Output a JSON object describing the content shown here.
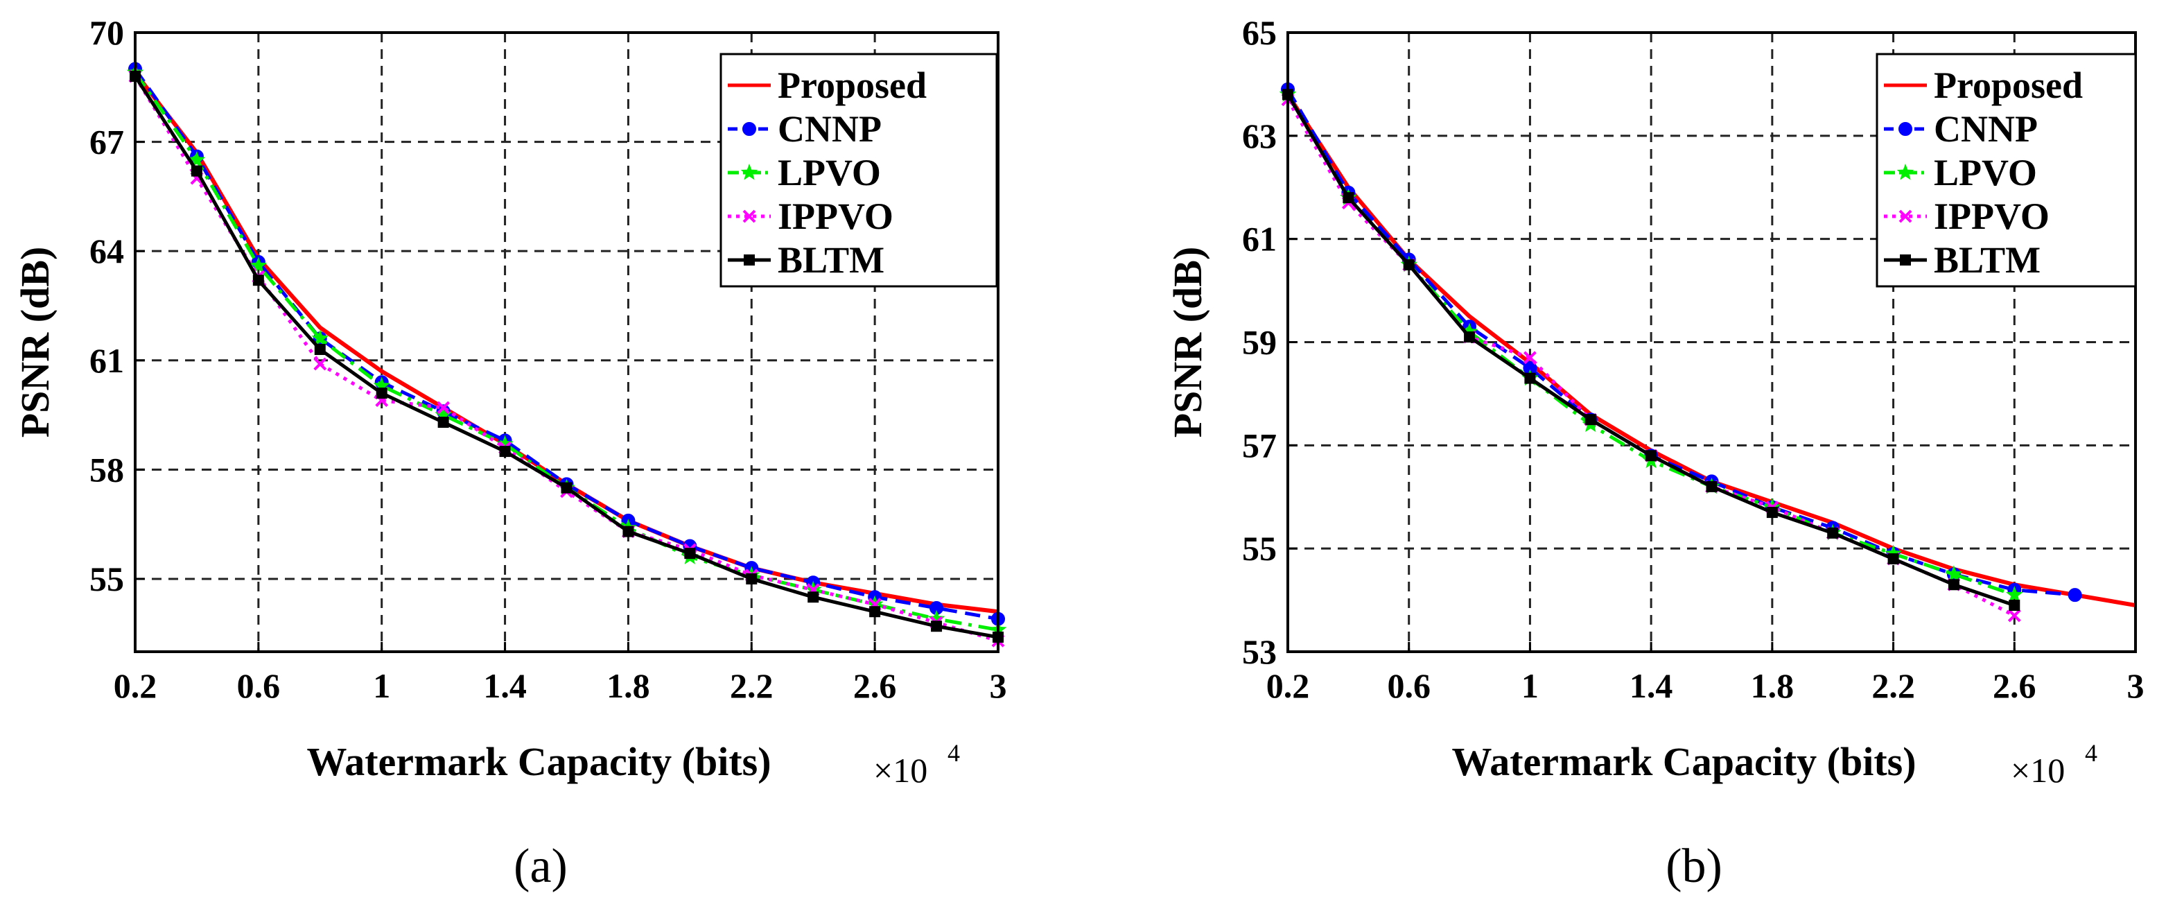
{
  "chart_data": [
    {
      "type": "line",
      "caption": "(a)",
      "xlabel": "Watermark Capacity (bits)",
      "x_multiplier": "×10",
      "x_multiplier_exp": "4",
      "ylabel": "PSNR (dB)",
      "xlim": [
        0.2,
        3.0
      ],
      "ylim": [
        53.0,
        70.0
      ],
      "xticks": [
        "0.2",
        "0.6",
        "1",
        "1.4",
        "1.8",
        "2.2",
        "2.6",
        "3"
      ],
      "xtick_values": [
        0.2,
        0.6,
        1.0,
        1.4,
        1.8,
        2.2,
        2.6,
        3.0
      ],
      "yticks": [
        "55",
        "58",
        "61",
        "64",
        "67",
        "70"
      ],
      "ytick_values": [
        55,
        58,
        61,
        64,
        67,
        70
      ],
      "grid": true,
      "legend_position": "top-right",
      "series": [
        {
          "name": "Proposed",
          "color": "#ff0000",
          "dash": "solid",
          "marker": "none",
          "x": [
            0.2,
            0.4,
            0.6,
            0.8,
            1.0,
            1.2,
            1.4,
            1.6,
            1.8,
            2.0,
            2.2,
            2.4,
            2.6,
            2.8,
            3.0
          ],
          "y": [
            68.9,
            66.7,
            63.8,
            61.9,
            60.7,
            59.7,
            58.7,
            57.6,
            56.6,
            55.9,
            55.3,
            54.9,
            54.6,
            54.3,
            54.1
          ]
        },
        {
          "name": "CNNP",
          "color": "#0000ff",
          "dash": "dash",
          "marker": "circle",
          "x": [
            0.2,
            0.4,
            0.6,
            0.8,
            1.0,
            1.2,
            1.4,
            1.6,
            1.8,
            2.0,
            2.2,
            2.4,
            2.6,
            2.8,
            3.0
          ],
          "y": [
            69.0,
            66.6,
            63.7,
            61.6,
            60.4,
            59.6,
            58.8,
            57.6,
            56.6,
            55.9,
            55.3,
            54.9,
            54.5,
            54.2,
            53.9
          ]
        },
        {
          "name": "LPVO",
          "color": "#00ee00",
          "dash": "dashdot",
          "marker": "star",
          "x": [
            0.2,
            0.4,
            0.6,
            0.8,
            1.0,
            1.2,
            1.4,
            1.6,
            1.8,
            2.0,
            2.2,
            2.4,
            2.6,
            2.8,
            3.0
          ],
          "y": [
            68.9,
            66.5,
            63.6,
            61.6,
            60.3,
            59.5,
            58.7,
            57.5,
            56.4,
            55.6,
            55.1,
            54.7,
            54.3,
            53.9,
            53.6
          ]
        },
        {
          "name": "IPPVO",
          "color": "#ff00ff",
          "dash": "dot",
          "marker": "x",
          "x": [
            0.2,
            0.4,
            0.6,
            0.8,
            1.0,
            1.2,
            1.4,
            1.6,
            1.8,
            2.0,
            2.2,
            2.4,
            2.6,
            2.8,
            3.0
          ],
          "y": [
            68.8,
            66.0,
            63.3,
            60.9,
            59.9,
            59.7,
            58.6,
            57.4,
            56.3,
            55.8,
            55.1,
            54.7,
            54.3,
            53.8,
            53.3
          ]
        },
        {
          "name": "BLTM",
          "color": "#000000",
          "dash": "solid",
          "marker": "square",
          "x": [
            0.2,
            0.4,
            0.6,
            0.8,
            1.0,
            1.2,
            1.4,
            1.6,
            1.8,
            2.0,
            2.2,
            2.4,
            2.6,
            2.8,
            3.0
          ],
          "y": [
            68.8,
            66.2,
            63.2,
            61.3,
            60.1,
            59.3,
            58.5,
            57.5,
            56.3,
            55.7,
            55.0,
            54.5,
            54.1,
            53.7,
            53.4
          ]
        }
      ]
    },
    {
      "type": "line",
      "caption": "(b)",
      "xlabel": "Watermark Capacity (bits)",
      "x_multiplier": "×10",
      "x_multiplier_exp": "4",
      "ylabel": "PSNR (dB)",
      "xlim": [
        0.2,
        3.0
      ],
      "ylim": [
        53.0,
        65.0
      ],
      "xticks": [
        "0.2",
        "0.6",
        "1",
        "1.4",
        "1.8",
        "2.2",
        "2.6",
        "3"
      ],
      "xtick_values": [
        0.2,
        0.6,
        1.0,
        1.4,
        1.8,
        2.2,
        2.6,
        3.0
      ],
      "yticks": [
        "53",
        "55",
        "57",
        "59",
        "61",
        "63",
        "65"
      ],
      "ytick_values": [
        53,
        55,
        57,
        59,
        61,
        63,
        65
      ],
      "grid": true,
      "legend_position": "top-right",
      "series": [
        {
          "name": "Proposed",
          "color": "#ff0000",
          "dash": "solid",
          "marker": "none",
          "x": [
            0.2,
            0.4,
            0.6,
            0.8,
            1.0,
            1.2,
            1.4,
            1.6,
            1.8,
            2.0,
            2.2,
            2.4,
            2.6,
            2.8,
            3.0
          ],
          "y": [
            63.8,
            62.0,
            60.6,
            59.5,
            58.6,
            57.6,
            56.9,
            56.3,
            55.9,
            55.5,
            55.0,
            54.6,
            54.3,
            54.1,
            53.9
          ]
        },
        {
          "name": "CNNP",
          "color": "#0000ff",
          "dash": "dash",
          "marker": "circle",
          "x": [
            0.2,
            0.4,
            0.6,
            0.8,
            1.0,
            1.2,
            1.4,
            1.6,
            1.8,
            2.0,
            2.2,
            2.4,
            2.6,
            2.8
          ],
          "y": [
            63.9,
            61.9,
            60.6,
            59.3,
            58.5,
            57.5,
            56.8,
            56.3,
            55.8,
            55.4,
            54.9,
            54.5,
            54.2,
            54.1
          ]
        },
        {
          "name": "LPVO",
          "color": "#00ee00",
          "dash": "dashdot",
          "marker": "star",
          "x": [
            0.2,
            0.4,
            0.6,
            0.8,
            1.0,
            1.2,
            1.4,
            1.6,
            1.8,
            2.0,
            2.2,
            2.4,
            2.6
          ],
          "y": [
            63.8,
            61.8,
            60.5,
            59.2,
            58.3,
            57.4,
            56.7,
            56.2,
            55.8,
            55.3,
            54.9,
            54.5,
            54.1
          ]
        },
        {
          "name": "IPPVO",
          "color": "#ff00ff",
          "dash": "dot",
          "marker": "x",
          "x": [
            0.2,
            0.4,
            0.6,
            0.8,
            1.0,
            1.2,
            1.4,
            1.6,
            1.8,
            2.0,
            2.2,
            2.4,
            2.6
          ],
          "y": [
            63.7,
            61.7,
            60.5,
            59.1,
            58.7,
            57.5,
            56.8,
            56.2,
            55.8,
            55.3,
            54.8,
            54.3,
            53.7
          ]
        },
        {
          "name": "BLTM",
          "color": "#000000",
          "dash": "solid",
          "marker": "square",
          "x": [
            0.2,
            0.4,
            0.6,
            0.8,
            1.0,
            1.2,
            1.4,
            1.6,
            1.8,
            2.0,
            2.2,
            2.4,
            2.6
          ],
          "y": [
            63.8,
            61.8,
            60.5,
            59.1,
            58.3,
            57.5,
            56.8,
            56.2,
            55.7,
            55.3,
            54.8,
            54.3,
            53.9
          ]
        }
      ]
    }
  ]
}
